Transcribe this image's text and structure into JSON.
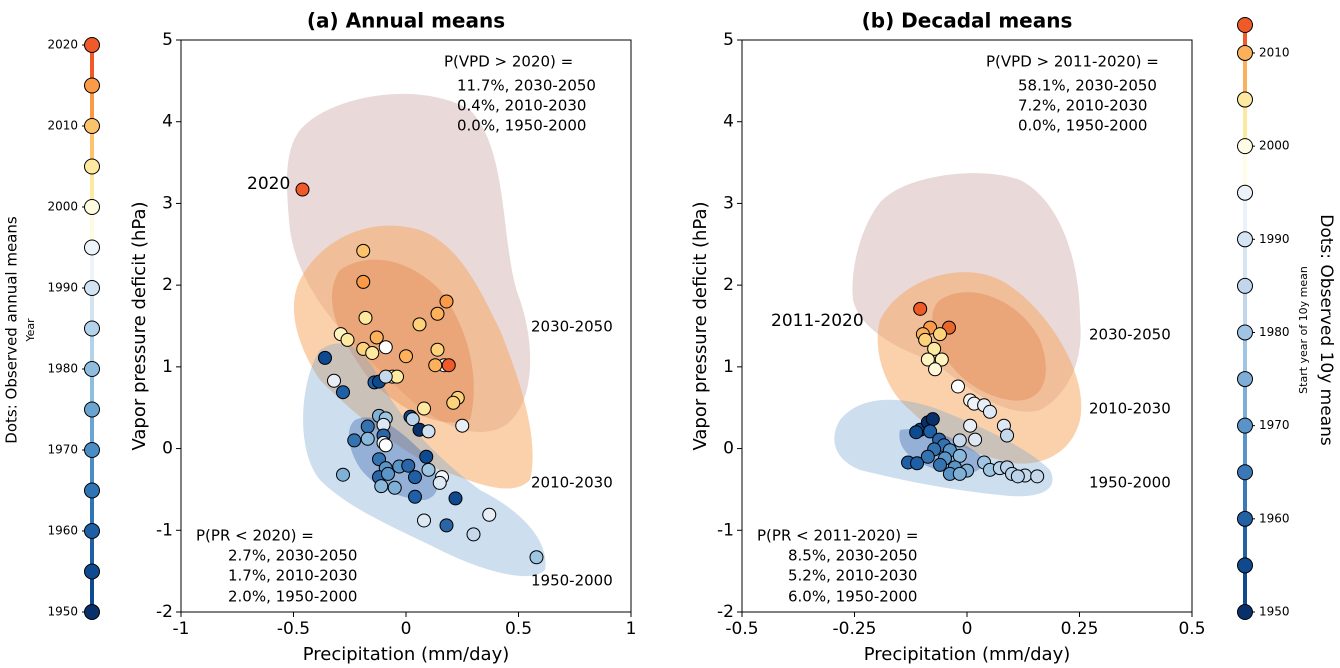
{
  "chart_data": [
    {
      "type": "scatter",
      "title": "(a) Annual means",
      "x_label": "Precipitation (mm/day)",
      "y_label": "Vapor pressure deficit (hPa)",
      "xlim": [
        -1,
        1
      ],
      "xticks": [
        -1,
        -0.5,
        0,
        0.5,
        1
      ],
      "ylim": [
        -2,
        5
      ],
      "yticks": [
        -2,
        -1,
        0,
        1,
        2,
        3,
        4,
        5
      ],
      "annotations": [
        {
          "text": "P(VPD > 2020) =",
          "color": "#888888"
        },
        {
          "text": "11.7%, 2030-2050",
          "color": "#8b0000"
        },
        {
          "text": "0.4%, 2010-2030",
          "color": "#ff8c00"
        },
        {
          "text": "0.0%, 1950-2000",
          "color": "#4169e1"
        },
        {
          "text": "2020",
          "color": "#000000"
        },
        {
          "text": "2030-2050",
          "color": "#8b0000"
        },
        {
          "text": "2010-2030",
          "color": "#ff8c00"
        },
        {
          "text": "1950-2000",
          "color": "#4169e1"
        },
        {
          "text": "P(PR < 2020) =",
          "color": "#888888"
        },
        {
          "text": "2.7%, 2030-2050",
          "color": "#8b0000"
        },
        {
          "text": "1.7%, 2010-2030",
          "color": "#ff8c00"
        },
        {
          "text": "2.0%, 1950-2000",
          "color": "#4169e1"
        }
      ],
      "x": [
        -0.46,
        -0.19,
        -0.19,
        0.18,
        0.14,
        0.06,
        -0.18,
        -0.13,
        -0.29,
        -0.26,
        -0.19,
        -0.15,
        -0.09,
        0,
        0.14,
        0.17,
        0.19,
        -0.06,
        -0.04,
        0.13,
        0.23,
        0.21,
        0.08,
        -0.36,
        -0.32,
        -0.28,
        -0.14,
        -0.12,
        -0.09,
        -0.12,
        -0.09,
        -0.1,
        -0.17,
        0.02,
        0.03,
        0.06,
        0.1,
        -0.1,
        -0.17,
        -0.1,
        -0.09,
        -0.23,
        0.09,
        -0.12,
        -0.09,
        -0.03,
        0.01,
        0.1,
        -0.12,
        -0.08,
        0.04,
        0.16,
        0.15,
        0.25,
        -0.28,
        -0.11,
        -0.05,
        0.22,
        0.04,
        0.08,
        0.18,
        0.37,
        0.3,
        0.58
      ],
      "y": [
        3.17,
        2.42,
        2.04,
        1.8,
        1.65,
        1.52,
        1.6,
        1.36,
        1.4,
        1.33,
        1.22,
        1.17,
        1.24,
        1.13,
        1.21,
        1.02,
        1.02,
        0.88,
        0.88,
        1.02,
        0.62,
        0.56,
        0.49,
        1.11,
        0.83,
        0.69,
        0.81,
        0.82,
        0.88,
        0.4,
        0.37,
        0.29,
        0.27,
        0.39,
        0.36,
        0.23,
        0.21,
        0.16,
        0.12,
        0.07,
        0.04,
        0.1,
        -0.1,
        -0.13,
        -0.24,
        -0.22,
        -0.21,
        -0.26,
        -0.35,
        -0.31,
        -0.35,
        -0.35,
        -0.42,
        0.28,
        -0.32,
        -0.46,
        -0.48,
        -0.61,
        -0.59,
        -0.88,
        -0.94,
        -0.81,
        -1.05,
        -1.33
      ],
      "colors": [
        "#ef5a28",
        "#fdc36a",
        "#fb9b47",
        "#fb9b47",
        "#fdb15b",
        "#fdd27a",
        "#fee9a0",
        "#fdb15b",
        "#fff4c0",
        "#fee9a0",
        "#fdd27a",
        "#fee9a0",
        "#ffffff",
        "#fdb15b",
        "#fdd27a",
        "#ffffff",
        "#ef5a28",
        "#fff4c0",
        "#fee9a0",
        "#fdb15b",
        "#fdd27a",
        "#fdd27a",
        "#fee9a0",
        "#0d4a8f",
        "#e8eef6",
        "#1f5fa6",
        "#1f5fa6",
        "#0d4a8f",
        "#c6d9ec",
        "#7fb0d6",
        "#9ec5e2",
        "#dce8f3",
        "#3572b0",
        "#0d4a8f",
        "#b8d3ea",
        "#08306b",
        "#cfe0f0",
        "#2a65a8",
        "#8bb9dc",
        "#f2f6fa",
        "#ffffff",
        "#3572b0",
        "#0d4a8f",
        "#3572b0",
        "#5a95c8",
        "#5a95c8",
        "#2a65a8",
        "#9ec5e2",
        "#2a65a8",
        "#5a95c8",
        "#1f5fa6",
        "#f2f6fa",
        "#dce8f3",
        "#e8eef6",
        "#7fb0d6",
        "#8bb9dc",
        "#7fb0d6",
        "#0d4a8f",
        "#1f5fa6",
        "#dce8f3",
        "#2a65a8",
        "#e8eef6",
        "#c6d9ec",
        "#9ec5e2"
      ],
      "colorbar": {
        "title": "Dots: Observed annual means",
        "label": "Year",
        "lim": [
          1950,
          2020
        ],
        "ticks": [
          1950,
          1960,
          1970,
          1980,
          1990,
          2000,
          2010,
          2020
        ],
        "dot_values": [
          1950,
          1955,
          1960,
          1965,
          1970,
          1975,
          1980,
          1985,
          1990,
          1995,
          2000,
          2005,
          2010,
          2015,
          2020
        ],
        "dot_colors": [
          "#08306b",
          "#0d4a8f",
          "#1f5fa6",
          "#2f74b5",
          "#4a8cc4",
          "#6aa5d2",
          "#8fbde0",
          "#b3d3ea",
          "#d2e3f2",
          "#edf3fa",
          "#fffbe0",
          "#fee9a0",
          "#fdc36a",
          "#fb9b47",
          "#ef5a28"
        ]
      }
    },
    {
      "type": "scatter",
      "title": "(b) Decadal means",
      "x_label": "Precipitation (mm/day)",
      "y_label": "Vapor pressure deficit (hPa)",
      "xlim": [
        -0.5,
        0.5
      ],
      "xticks": [
        -0.5,
        -0.25,
        0,
        0.25,
        0.5
      ],
      "ylim": [
        -2,
        5
      ],
      "yticks": [
        -2,
        -1,
        0,
        1,
        2,
        3,
        4,
        5
      ],
      "annotations": [
        {
          "text": "P(VPD > 2011-2020) =",
          "color": "#888888"
        },
        {
          "text": "58.1%, 2030-2050",
          "color": "#8b0000"
        },
        {
          "text": "7.2%, 2010-2030",
          "color": "#ff8c00"
        },
        {
          "text": "0.0%, 1950-2000",
          "color": "#4169e1"
        },
        {
          "text": "2011-2020",
          "color": "#000000"
        },
        {
          "text": "2030-2050",
          "color": "#8b0000"
        },
        {
          "text": "2010-2030",
          "color": "#ff8c00"
        },
        {
          "text": "1950-2000",
          "color": "#4169e1"
        },
        {
          "text": "P(PR < 2011-2020) =",
          "color": "#888888"
        },
        {
          "text": "8.5%, 2030-2050",
          "color": "#8b0000"
        },
        {
          "text": "5.2%, 2010-2030",
          "color": "#ff8c00"
        },
        {
          "text": "6.0%, 1950-2000",
          "color": "#4169e1"
        }
      ],
      "x": [
        -0.104,
        -0.082,
        -0.04,
        -0.098,
        -0.093,
        -0.06,
        -0.073,
        -0.087,
        -0.056,
        -0.071,
        -0.02,
        0.007,
        0.016,
        0.038,
        0.051,
        0.082,
        0.089,
        0.007,
        -0.016,
        0.018,
        -0.104,
        -0.087,
        -0.076,
        -0.113,
        -0.082,
        -0.062,
        -0.051,
        -0.073,
        -0.038,
        -0.016,
        -0.049,
        -0.087,
        -0.06,
        -0.027,
        0,
        0.038,
        0.051,
        0.073,
        0.089,
        0.1,
        0.129,
        0.156,
        0.113,
        -0.131,
        -0.111,
        -0.038,
        -0.016
      ],
      "y": [
        1.71,
        1.48,
        1.48,
        1.4,
        1.33,
        1.4,
        1.22,
        1.09,
        1.09,
        0.97,
        0.76,
        0.59,
        0.55,
        0.53,
        0.45,
        0.28,
        0.16,
        0.28,
        0.1,
        0.11,
        0.23,
        0.32,
        0.36,
        0.2,
        0.21,
        0.11,
        0.04,
        -0.01,
        -0.02,
        -0.09,
        -0.12,
        -0.1,
        -0.2,
        -0.23,
        -0.27,
        -0.17,
        -0.26,
        -0.24,
        -0.23,
        -0.31,
        -0.33,
        -0.34,
        -0.34,
        -0.17,
        -0.18,
        -0.31,
        -0.31
      ],
      "colors": [
        "#ef5a28",
        "#fb9b47",
        "#e8672d",
        "#fdb15b",
        "#fdd27a",
        "#fdd27a",
        "#fee9a0",
        "#fff4c0",
        "#fff4c0",
        "#fff8d8",
        "#ffffff",
        "#f5f8fb",
        "#eef3f8",
        "#e8eef6",
        "#dce8f3",
        "#dce8f3",
        "#c6d9ec",
        "#e8eef6",
        "#c6d9ec",
        "#dce8f3",
        "#0d4a8f",
        "#08306b",
        "#08306b",
        "#0d4a8f",
        "#1f5fa6",
        "#2a65a8",
        "#3572b0",
        "#3572b0",
        "#5a95c8",
        "#8bb9dc",
        "#5a95c8",
        "#3572b0",
        "#3572b0",
        "#5a95c8",
        "#7fb0d6",
        "#9ec5e2",
        "#9ec5e2",
        "#b8d3ea",
        "#b8d3ea",
        "#b8d3ea",
        "#c6d9ec",
        "#c6d9ec",
        "#b8d3ea",
        "#1f5fa6",
        "#1f5fa6",
        "#5a95c8",
        "#7fb0d6"
      ],
      "colorbar": {
        "title": "Dots: Observed 10y means",
        "label": "Start year of 10y mean",
        "lim": [
          1950,
          2013
        ],
        "ticks": [
          1950,
          1960,
          1970,
          1980,
          1990,
          2000,
          2010
        ],
        "dot_values": [
          1950,
          1955,
          1960,
          1965,
          1970,
          1975,
          1980,
          1985,
          1990,
          1995,
          2000,
          2005,
          2010,
          2013
        ],
        "dot_colors": [
          "#08306b",
          "#0f4a8f",
          "#2361a5",
          "#3b78b8",
          "#5a93c8",
          "#7eadd7",
          "#a0c4e3",
          "#bfd6ec",
          "#d6e5f3",
          "#ecf2f9",
          "#fffde6",
          "#fee9a0",
          "#fbb15b",
          "#ef5a28"
        ]
      }
    }
  ]
}
